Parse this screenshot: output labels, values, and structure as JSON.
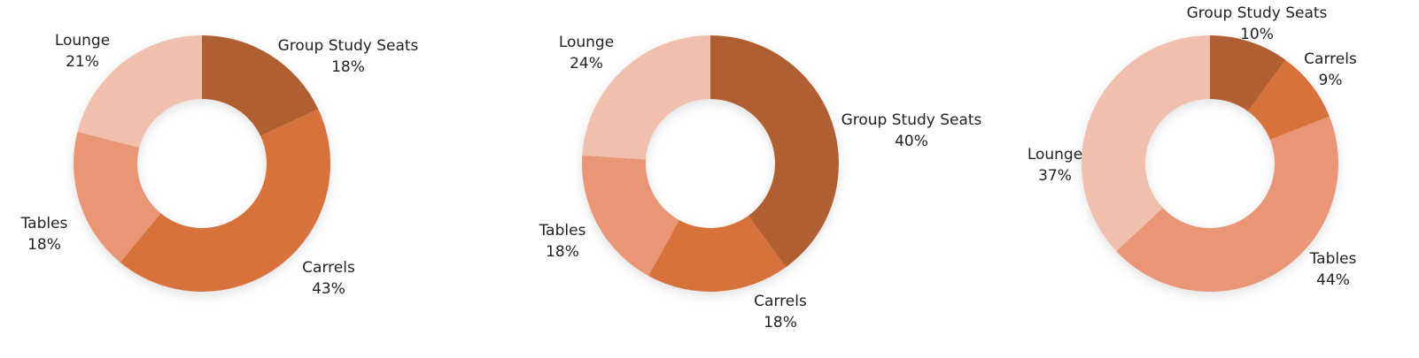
{
  "chart_data": [
    {
      "type": "pie",
      "donut": true,
      "categories": [
        "Group Study Seats",
        "Carrels",
        "Tables",
        "Lounge"
      ],
      "values": [
        18,
        43,
        18,
        21
      ],
      "value_labels": [
        "18%",
        "43%",
        "18%",
        "21%"
      ],
      "colors": [
        "#b05e30",
        "#d8723c",
        "#e99677",
        "#f0bfae"
      ],
      "legend": "none"
    },
    {
      "type": "pie",
      "donut": true,
      "categories": [
        "Group Study Seats",
        "Carrels",
        "Tables",
        "Lounge"
      ],
      "values": [
        40,
        18,
        18,
        24
      ],
      "value_labels": [
        "40%",
        "18%",
        "18%",
        "24%"
      ],
      "colors": [
        "#b05e30",
        "#d8723c",
        "#e99677",
        "#f0bfae"
      ],
      "legend": "none"
    },
    {
      "type": "pie",
      "donut": true,
      "categories": [
        "Group Study Seats",
        "Carrels",
        "Tables",
        "Lounge"
      ],
      "values": [
        10,
        9,
        44,
        37
      ],
      "value_labels": [
        "10%",
        "9%",
        "44%",
        "37%"
      ],
      "colors": [
        "#b05e30",
        "#d8723c",
        "#e99677",
        "#f0bfae"
      ],
      "legend": "none"
    }
  ]
}
